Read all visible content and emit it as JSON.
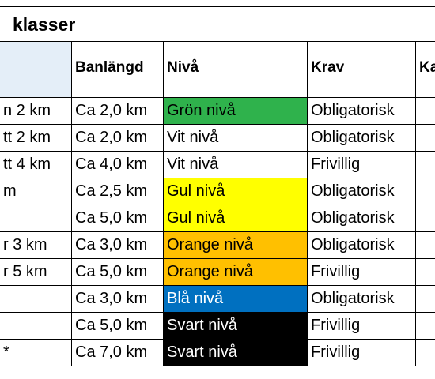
{
  "title": "klasser",
  "table": {
    "headers": [
      null,
      "Banlängd",
      "Nivå",
      "Krav",
      "Ka"
    ],
    "rows": [
      {
        "cells": [
          "n 2 km",
          "Ca 2,0 km",
          "Grön nivå",
          "Obligatorisk"
        ],
        "fill": "#2fb24c",
        "ink": "#000000"
      },
      {
        "cells": [
          "tt 2 km",
          "Ca 2,0 km",
          "Vit nivå",
          "Obligatorisk"
        ],
        "fill": "#ffffff",
        "ink": "#000000"
      },
      {
        "cells": [
          "tt 4 km",
          "Ca 4,0 km",
          "Vit nivå",
          "Frivillig"
        ],
        "fill": "#ffffff",
        "ink": "#000000"
      },
      {
        "cells": [
          "m",
          "Ca 2,5 km",
          "Gul nivå",
          "Obligatorisk"
        ],
        "fill": "#ffff00",
        "ink": "#000000"
      },
      {
        "cells": [
          null,
          "Ca 5,0 km",
          "Gul nivå",
          "Obligatorisk"
        ],
        "fill": "#ffff00",
        "ink": "#000000"
      },
      {
        "cells": [
          "r 3 km",
          "Ca 3,0 km",
          "Orange nivå",
          "Obligatorisk"
        ],
        "fill": "#ffc000",
        "ink": "#000000"
      },
      {
        "cells": [
          "r 5 km",
          "Ca 5,0 km",
          "Orange nivå",
          "Frivillig"
        ],
        "fill": "#ffc000",
        "ink": "#000000"
      },
      {
        "cells": [
          null,
          "Ca 3,0 km",
          "Blå nivå",
          "Obligatorisk"
        ],
        "fill": "#0070c0",
        "ink": "#ffffff"
      },
      {
        "cells": [
          null,
          "Ca 5,0 km",
          "Svart nivå",
          "Frivillig"
        ],
        "fill": "#000000",
        "ink": "#ffffff"
      },
      {
        "cells": [
          "*",
          "Ca 7,0 km",
          "Svart nivå",
          "Frivillig"
        ],
        "fill": "#000000",
        "ink": "#ffffff"
      }
    ]
  }
}
